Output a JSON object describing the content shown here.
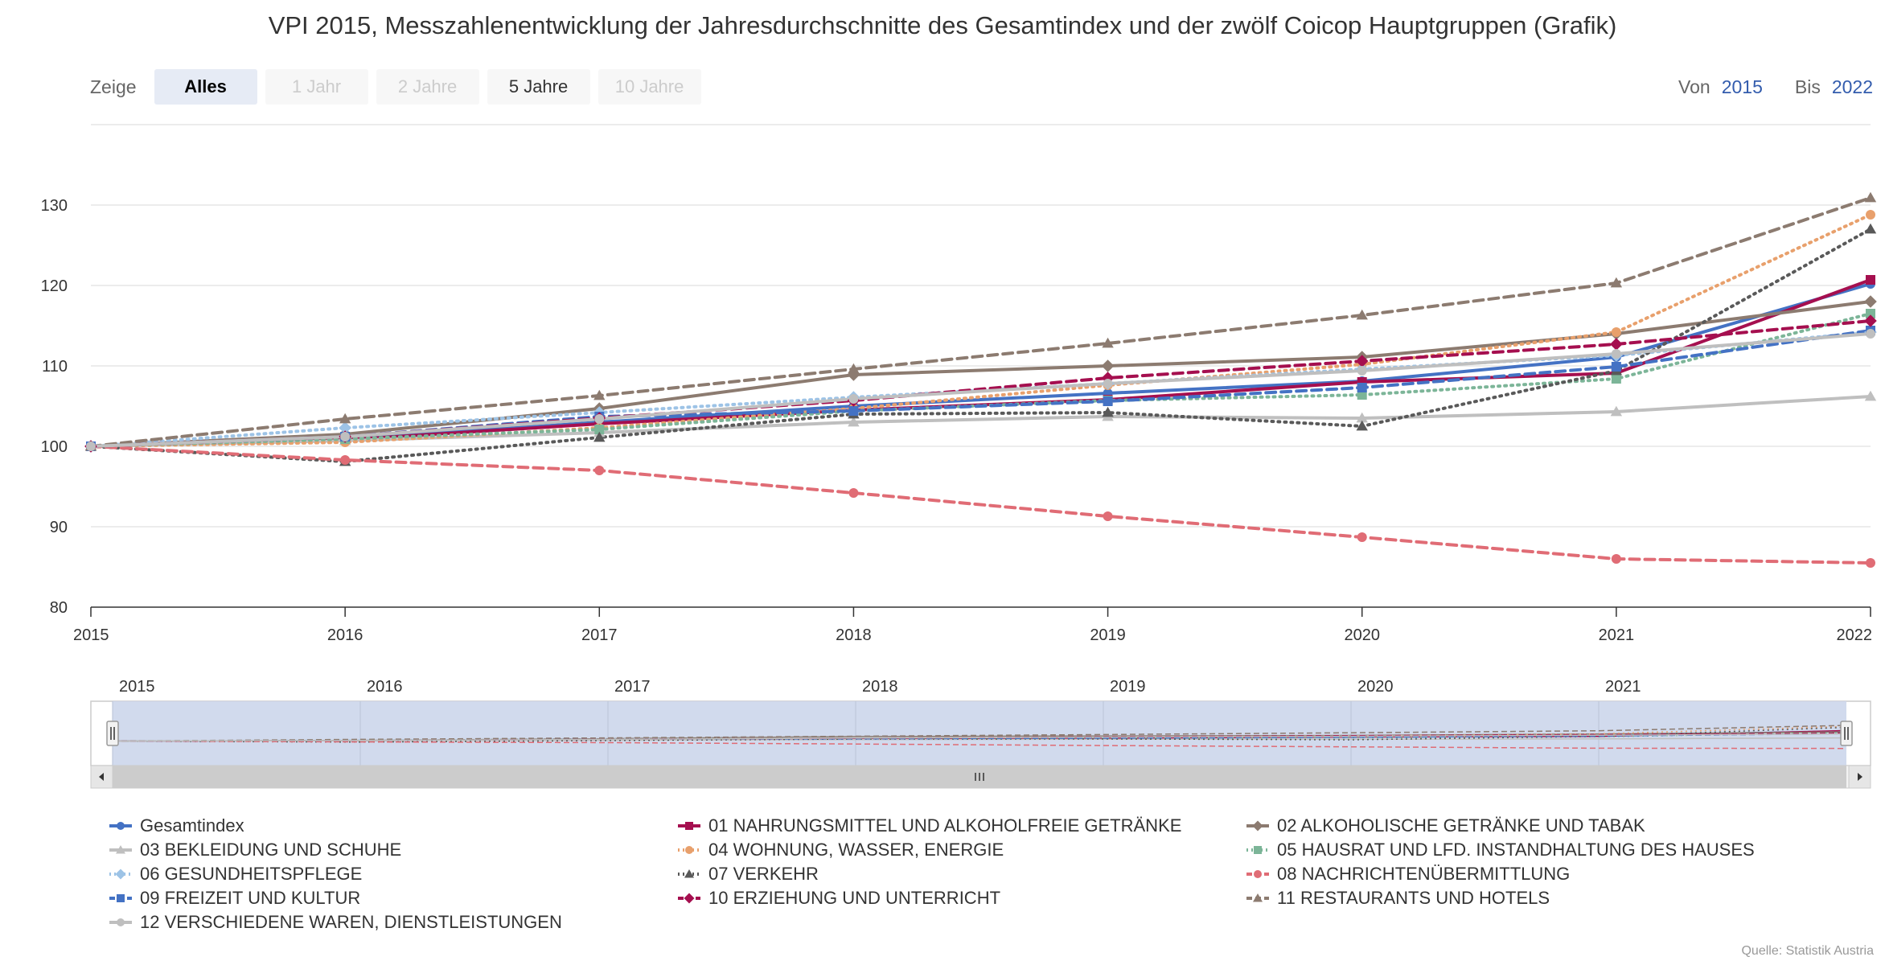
{
  "page": {
    "title": "VPI 2015, Messzahlenentwicklung der Jahresdurchschnitte des Gesamtindex und der zwölf Coicop Hauptgruppen (Grafik)",
    "credits": "Quelle: Statistik Austria"
  },
  "range_selector": {
    "label": "Zeige",
    "buttons": [
      {
        "label": "Alles",
        "state": "selected"
      },
      {
        "label": "1 Jahr",
        "state": "disabled"
      },
      {
        "label": "2 Jahre",
        "state": "disabled"
      },
      {
        "label": "5 Jahre",
        "state": "enabled"
      },
      {
        "label": "10 Jahre",
        "state": "disabled"
      }
    ],
    "from_label": "Von",
    "from_value": "2015",
    "to_label": "Bis",
    "to_value": "2022"
  },
  "navigator": {
    "ticks": [
      "2015",
      "2016",
      "2017",
      "2018",
      "2019",
      "2020",
      "2021"
    ],
    "mask_color": "#ccd6eb",
    "scrollbar_thumb_icon": "grip-lines-icon",
    "scrollbar_left_icon": "arrow-left-icon",
    "scrollbar_right_icon": "arrow-right-icon"
  },
  "chart_data": {
    "type": "line",
    "title": "VPI 2015, Messzahlenentwicklung der Jahresdurchschnitte des Gesamtindex und der zwölf Coicop Hauptgruppen (Grafik)",
    "x": [
      "2015",
      "2016",
      "2017",
      "2018",
      "2019",
      "2020",
      "2021",
      "2022"
    ],
    "xlabel": "",
    "ylabel": "",
    "ylim": [
      80,
      140
    ],
    "yticks": [
      80,
      90,
      100,
      110,
      120,
      130
    ],
    "grid": true,
    "legend_position": "bottom",
    "series": [
      {
        "name": "Gesamtindex",
        "color": "#4472c4",
        "dash": "solid",
        "marker": "circle",
        "values": [
          100,
          100.9,
          103.0,
          105.0,
          106.6,
          108.1,
          111.1,
          120.2
        ]
      },
      {
        "name": "01 NAHRUNGSMITTEL UND ALKOHOLFREIE GETRÄNKE",
        "color": "#a50f4f",
        "dash": "solid",
        "marker": "square",
        "values": [
          100,
          100.8,
          102.8,
          104.5,
          105.8,
          108.0,
          109.1,
          120.7
        ]
      },
      {
        "name": "02 ALKOHOLISCHE GETRÄNKE UND TABAK",
        "color": "#8c7b70",
        "dash": "solid",
        "marker": "diamond",
        "values": [
          100,
          101.5,
          104.7,
          108.9,
          110.0,
          111.1,
          114.0,
          118.0
        ]
      },
      {
        "name": "03 BEKLEIDUNG UND SCHUHE",
        "color": "#bfbfbf",
        "dash": "solid",
        "marker": "triangle",
        "values": [
          100,
          100.7,
          101.7,
          103.0,
          103.7,
          103.5,
          104.3,
          106.2
        ]
      },
      {
        "name": "04 WOHNUNG, WASSER, ENERGIE",
        "color": "#e8a06c",
        "dash": "dot",
        "marker": "circle",
        "values": [
          100,
          100.5,
          102.3,
          104.7,
          107.6,
          110.2,
          114.2,
          128.8
        ]
      },
      {
        "name": "05 HAUSRAT UND LFD. INSTANDHALTUNG DES HAUSES",
        "color": "#7cb598",
        "dash": "dot",
        "marker": "square",
        "values": [
          100,
          100.9,
          102.1,
          104.4,
          105.7,
          106.4,
          108.4,
          116.5
        ]
      },
      {
        "name": "06 GESUNDHEITSPFLEGE",
        "color": "#9dc3e6",
        "dash": "dot",
        "marker": "diamond",
        "values": [
          100,
          102.3,
          104.2,
          106.1,
          107.8,
          109.6,
          111.3,
          114.2
        ]
      },
      {
        "name": "07 VERKEHR",
        "color": "#595959",
        "dash": "dot",
        "marker": "triangle",
        "values": [
          100,
          98.1,
          101.1,
          104.0,
          104.2,
          102.5,
          109.4,
          127.0
        ]
      },
      {
        "name": "08 NACHRICHTENÜBERMITTLUNG",
        "color": "#e06c75",
        "dash": "dash",
        "marker": "circle",
        "values": [
          100,
          98.3,
          97.0,
          94.2,
          91.3,
          88.7,
          86.0,
          85.5
        ]
      },
      {
        "name": "09 FREIZEIT UND KULTUR",
        "color": "#4472c4",
        "dash": "dash",
        "marker": "square",
        "values": [
          100,
          101.2,
          103.7,
          104.4,
          105.6,
          107.3,
          109.9,
          114.4
        ]
      },
      {
        "name": "10 ERZIEHUNG UND UNTERRICHT",
        "color": "#a50f4f",
        "dash": "dash",
        "marker": "diamond",
        "values": [
          100,
          101.2,
          103.5,
          105.7,
          108.5,
          110.6,
          112.7,
          115.6
        ]
      },
      {
        "name": "11 RESTAURANTS UND HOTELS",
        "color": "#8c7b70",
        "dash": "dash",
        "marker": "triangle",
        "values": [
          100,
          103.4,
          106.3,
          109.6,
          112.8,
          116.3,
          120.3,
          130.9
        ]
      },
      {
        "name": "12 VERSCHIEDENE WAREN, DIENSTLEISTUNGEN",
        "color": "#bfbfbf",
        "dash": "solid",
        "marker": "circle",
        "values": [
          100,
          101.2,
          103.4,
          105.9,
          107.8,
          109.4,
          111.5,
          114.0
        ]
      }
    ]
  }
}
